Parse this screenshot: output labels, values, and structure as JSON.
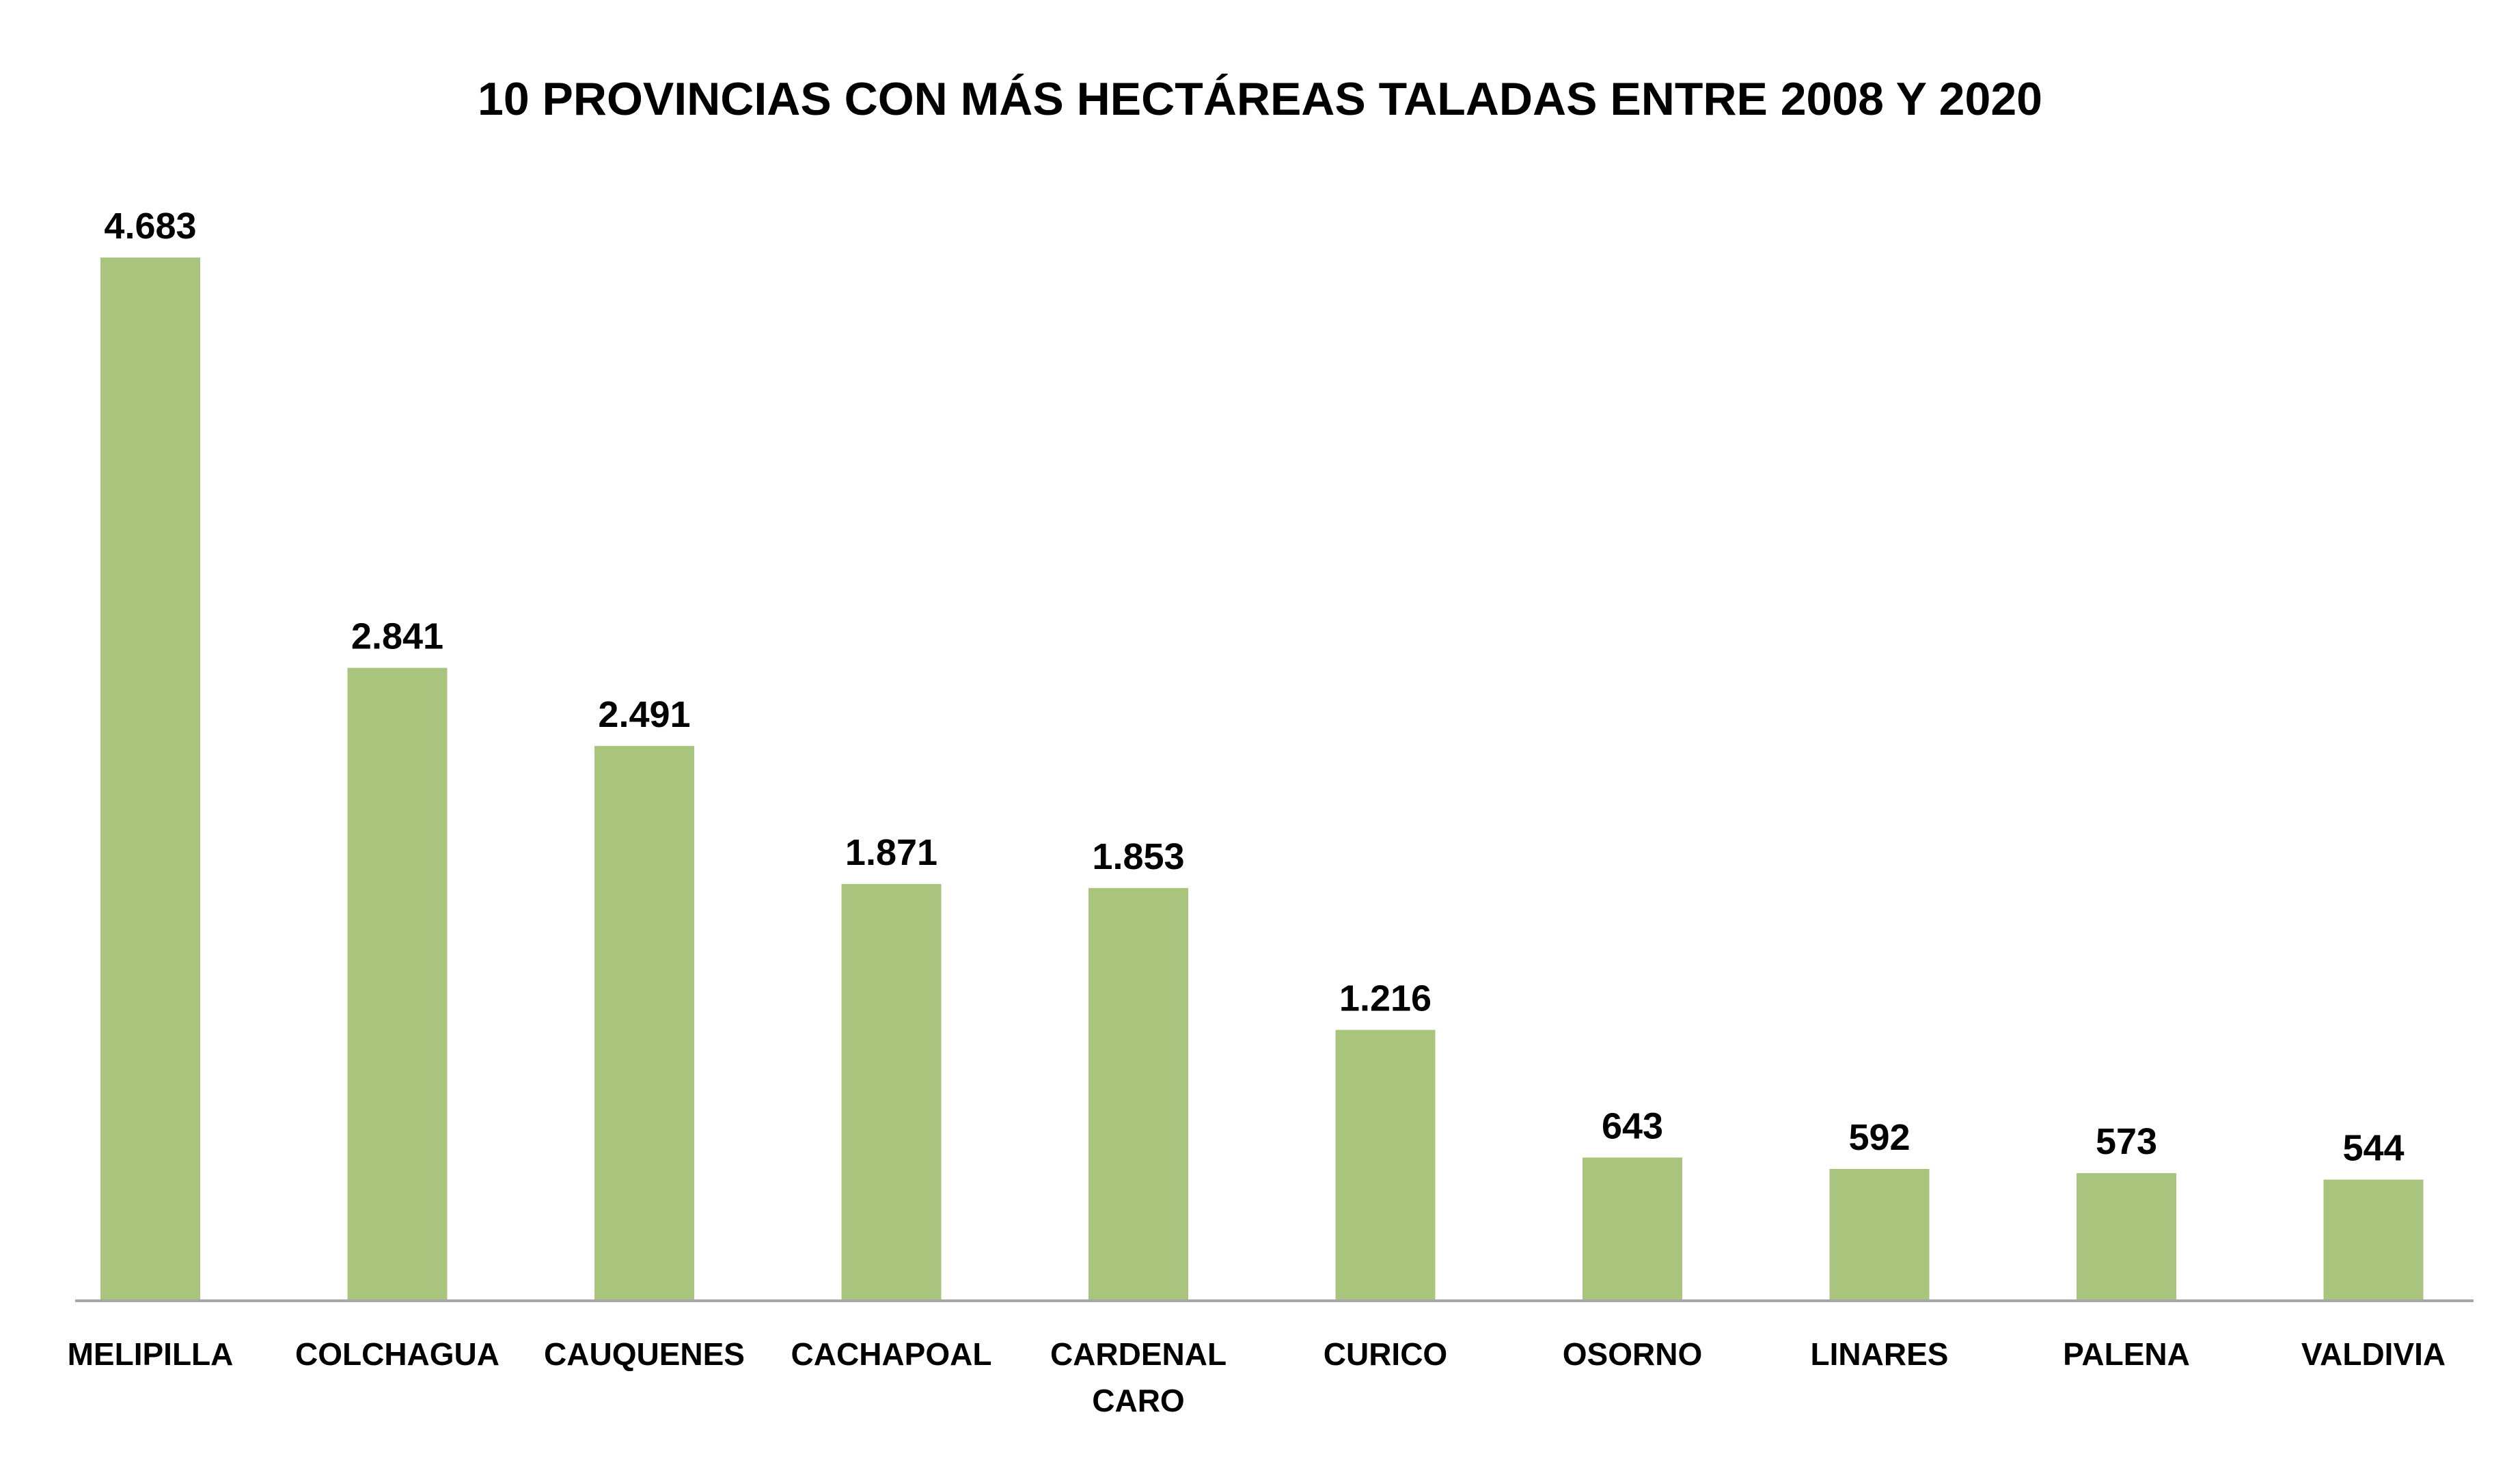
{
  "chart_data": {
    "type": "bar",
    "title": "10 PROVINCIAS CON MÁS HECTÁREAS TALADAS ENTRE 2008 Y 2020",
    "categories": [
      [
        "MELIPILLA"
      ],
      [
        "COLCHAGUA"
      ],
      [
        "CAUQUENES"
      ],
      [
        "CACHAPOAL"
      ],
      [
        "CARDENAL",
        "CARO"
      ],
      [
        "CURICO"
      ],
      [
        "OSORNO"
      ],
      [
        "LINARES"
      ],
      [
        "PALENA"
      ],
      [
        "VALDIVIA"
      ]
    ],
    "values": [
      4683,
      2841,
      2491,
      1871,
      1853,
      1216,
      643,
      592,
      573,
      544
    ],
    "data_labels": [
      "4.683",
      "2.841",
      "2.491",
      "1.871",
      "1.853",
      "1.216",
      "643",
      "592",
      "573",
      "544"
    ],
    "bar_color": "#a9c47c",
    "axis_color": "#a6a6a6",
    "ylim": [
      0,
      4683
    ],
    "y_axis_visible": false,
    "grid": false,
    "legend": "none"
  }
}
